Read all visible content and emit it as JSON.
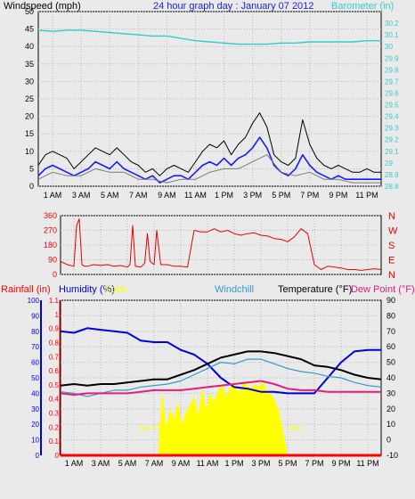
{
  "colors": {
    "background": "#eaeaea",
    "grid": "#b8b8b8",
    "wind_gust": "#000000",
    "wind_speed": "#1a1aff",
    "wind_avg": "#7a7a7a",
    "barometer": "#33cccc",
    "direction": "#e80000",
    "humidity": "#0000dd",
    "windchill": "#3399cc",
    "temperature": "#000000",
    "dew_point": "#e0207a",
    "solar": "#ffff00",
    "rainfall": "#ff0000",
    "day_band": "#ffff00"
  },
  "time_axis": {
    "ticks": [
      "1 AM",
      "3 AM",
      "5 AM",
      "7 AM",
      "9 AM",
      "11 AM",
      "1 PM",
      "3 PM",
      "5 PM",
      "7 PM",
      "9 PM",
      "11 PM"
    ],
    "hours": [
      1,
      3,
      5,
      7,
      9,
      11,
      13,
      15,
      17,
      19,
      21,
      23
    ]
  },
  "chart_data": [
    {
      "type": "line",
      "title": "24 hour graph day : January 07 2012",
      "ylabel_left": "Windspeed (mph)",
      "ylabel_right": "Barometer (in)",
      "ylim_left": [
        0,
        50
      ],
      "yticks_left": [
        "0",
        "5",
        "10",
        "15",
        "20",
        "25",
        "30",
        "35",
        "40",
        "45",
        "50"
      ],
      "ylim_right": [
        28.8,
        30.3
      ],
      "yticks_right": [
        "28.8",
        "28.9",
        "29",
        "29.1",
        "29.2",
        "29.3",
        "29.4",
        "29.5",
        "29.6",
        "29.7",
        "29.8",
        "29.9",
        "30",
        "30.1",
        "30.2"
      ],
      "xlim": [
        0,
        24
      ],
      "grid": true,
      "series": [
        {
          "key": "gust",
          "axis": "left",
          "x": [
            0,
            0.5,
            1,
            1.5,
            2,
            2.5,
            3,
            3.5,
            4,
            4.5,
            5,
            5.5,
            6,
            6.5,
            7,
            7.5,
            8,
            8.5,
            9,
            9.5,
            10,
            10.5,
            11,
            11.5,
            12,
            12.5,
            13,
            13.5,
            14,
            14.5,
            15,
            15.5,
            16,
            16.5,
            17,
            17.5,
            18,
            18.5,
            19,
            19.5,
            20,
            20.5,
            21,
            21.5,
            22,
            22.5,
            23,
            23.5,
            24
          ],
          "y": [
            6,
            9,
            10,
            9,
            8,
            5,
            7,
            9,
            11,
            10,
            9,
            11,
            9,
            7,
            6,
            4,
            5,
            3,
            5,
            6,
            5,
            4,
            7,
            10,
            12,
            11,
            13,
            9,
            12,
            14,
            18,
            21,
            17,
            9,
            7,
            6,
            8,
            19,
            12,
            8,
            6,
            5,
            6,
            5,
            4,
            4,
            5,
            4,
            4
          ]
        },
        {
          "key": "speed",
          "axis": "left",
          "x": [
            0,
            0.5,
            1,
            1.5,
            2,
            2.5,
            3,
            3.5,
            4,
            4.5,
            5,
            5.5,
            6,
            6.5,
            7,
            7.5,
            8,
            8.5,
            9,
            9.5,
            10,
            10.5,
            11,
            11.5,
            12,
            12.5,
            13,
            13.5,
            14,
            14.5,
            15,
            15.5,
            16,
            16.5,
            17,
            17.5,
            18,
            18.5,
            19,
            19.5,
            20,
            20.5,
            21,
            21.5,
            22,
            22.5,
            23,
            23.5,
            24
          ],
          "y": [
            3,
            5,
            6,
            5,
            4,
            3,
            4,
            5,
            7,
            6,
            5,
            7,
            5,
            4,
            3,
            2,
            3,
            1,
            2,
            3,
            3,
            2,
            4,
            6,
            7,
            6,
            8,
            6,
            8,
            9,
            11,
            14,
            11,
            6,
            4,
            3,
            5,
            9,
            6,
            4,
            3,
            2,
            3,
            2,
            2,
            2,
            2,
            2,
            2
          ]
        },
        {
          "key": "avg",
          "axis": "left",
          "x": [
            0,
            1,
            2,
            3,
            4,
            5,
            6,
            7,
            8,
            9,
            10,
            11,
            12,
            13,
            14,
            15,
            16,
            17,
            18,
            19,
            20,
            21,
            22,
            23,
            24
          ],
          "y": [
            2,
            4,
            3,
            3,
            5,
            4,
            4,
            2,
            2,
            1,
            2,
            2,
            4,
            5,
            5,
            7,
            9,
            4,
            3,
            4,
            2,
            2,
            1,
            1,
            1
          ]
        },
        {
          "key": "barometer",
          "axis": "right",
          "x": [
            0,
            1,
            2,
            3,
            4,
            5,
            6,
            7,
            8,
            9,
            10,
            11,
            12,
            13,
            14,
            15,
            16,
            17,
            18,
            19,
            20,
            21,
            22,
            23,
            24
          ],
          "y": [
            30.14,
            30.13,
            30.14,
            30.14,
            30.13,
            30.12,
            30.11,
            30.1,
            30.09,
            30.09,
            30.07,
            30.05,
            30.04,
            30.03,
            30.02,
            30.02,
            30.02,
            30.03,
            30.03,
            30.04,
            30.04,
            30.04,
            30.04,
            30.05,
            30.05
          ]
        }
      ]
    },
    {
      "type": "line",
      "ylabel_right_ticks": [
        "N",
        "W",
        "S",
        "E",
        "N"
      ],
      "ylim": [
        0,
        360
      ],
      "yticks": [
        "0",
        "90",
        "180",
        "270",
        "360"
      ],
      "xlim": [
        0,
        24
      ],
      "grid": true,
      "series": [
        {
          "key": "direction",
          "x": [
            0,
            0.5,
            1,
            1.2,
            1.4,
            1.6,
            1.8,
            2,
            2.5,
            3,
            3.5,
            4,
            4.5,
            5,
            5.2,
            5.4,
            5.6,
            6,
            6.3,
            6.5,
            6.7,
            7,
            7.2,
            7.5,
            8,
            8.5,
            9,
            9.5,
            10,
            10.5,
            11,
            11.5,
            12,
            12.5,
            13,
            13.5,
            14,
            14.5,
            15,
            15.5,
            16,
            16.5,
            17,
            17.5,
            18,
            18.5,
            19,
            19.5,
            20,
            20.5,
            21,
            21.5,
            22,
            22.5,
            23,
            23.5,
            24
          ],
          "y": [
            80,
            60,
            50,
            300,
            340,
            60,
            50,
            50,
            60,
            55,
            60,
            50,
            55,
            45,
            60,
            300,
            50,
            45,
            70,
            250,
            80,
            60,
            270,
            60,
            60,
            50,
            50,
            45,
            270,
            260,
            260,
            280,
            260,
            270,
            250,
            240,
            250,
            255,
            240,
            235,
            220,
            215,
            200,
            230,
            280,
            250,
            60,
            30,
            50,
            45,
            40,
            30,
            30,
            25,
            30,
            35,
            30
          ]
        }
      ]
    },
    {
      "type": "line",
      "labels": {
        "rainfall": "Rainfall (in)",
        "humidity": "Humidity (%)",
        "solar": "Solar",
        "windchill": "Windchill",
        "temperature": "Temperature (°F)",
        "dew_point": "Dew Point (°F)"
      },
      "annotations": {
        "sunrise": "Sun Rise",
        "sunset": "Set"
      },
      "ylim_rain": [
        0,
        1.1
      ],
      "yticks_rain": [
        "0",
        "0.1",
        "0.2",
        "0.3",
        "0.4",
        "0.5",
        "0.6",
        "0.7",
        "0.8",
        "0.9",
        "1",
        "1.1"
      ],
      "ylim_humidity": [
        0,
        100
      ],
      "yticks_humidity": [
        "0",
        "10",
        "20",
        "30",
        "40",
        "50",
        "60",
        "70",
        "80",
        "90",
        "100"
      ],
      "ylim_temp": [
        -10,
        90
      ],
      "yticks_temp": [
        "-10",
        "0",
        "10",
        "20",
        "30",
        "40",
        "50",
        "60",
        "70",
        "80",
        "90"
      ],
      "xlim": [
        0,
        24
      ],
      "grid": true,
      "sun": {
        "rise_hour": 7.3,
        "set_hour": 17.0
      },
      "series": [
        {
          "key": "humidity",
          "axis": "humidity",
          "x": [
            0,
            1,
            2,
            3,
            4,
            5,
            6,
            7,
            8,
            9,
            10,
            11,
            12,
            13,
            14,
            15,
            16,
            17,
            18,
            19,
            20,
            21,
            22,
            23,
            24
          ],
          "y": [
            80,
            79,
            82,
            81,
            80,
            79,
            74,
            73,
            73,
            68,
            65,
            59,
            50,
            44,
            43,
            41,
            41,
            40,
            40,
            40,
            50,
            60,
            67,
            68,
            68
          ]
        },
        {
          "key": "temperature",
          "axis": "temp",
          "x": [
            0,
            1,
            2,
            3,
            4,
            5,
            6,
            7,
            8,
            9,
            10,
            11,
            12,
            13,
            14,
            15,
            16,
            17,
            18,
            19,
            20,
            21,
            22,
            23,
            24
          ],
          "y": [
            35,
            36,
            35,
            36,
            36,
            37,
            38,
            39,
            39,
            42,
            45,
            49,
            53,
            55,
            57,
            57,
            56,
            54,
            52,
            48,
            47,
            45,
            42,
            40,
            39
          ]
        },
        {
          "key": "windchill",
          "axis": "temp",
          "x": [
            0,
            1,
            2,
            3,
            4,
            5,
            6,
            7,
            8,
            9,
            10,
            11,
            12,
            13,
            14,
            15,
            16,
            17,
            18,
            19,
            20,
            21,
            22,
            23,
            24
          ],
          "y": [
            31,
            30,
            28,
            30,
            32,
            32,
            34,
            35,
            36,
            38,
            42,
            46,
            50,
            49,
            52,
            52,
            49,
            46,
            44,
            43,
            41,
            40,
            37,
            35,
            34
          ]
        },
        {
          "key": "dew_point",
          "axis": "temp",
          "x": [
            0,
            1,
            2,
            3,
            4,
            5,
            6,
            7,
            8,
            9,
            10,
            11,
            12,
            13,
            14,
            15,
            16,
            17,
            18,
            19,
            20,
            21,
            22,
            23,
            24
          ],
          "y": [
            30,
            29,
            30,
            30,
            30,
            30,
            31,
            32,
            32,
            32,
            33,
            34,
            35,
            36,
            37,
            38,
            36,
            33,
            32,
            32,
            31,
            31,
            31,
            31,
            31
          ]
        },
        {
          "key": "solar",
          "axis": "humidity",
          "x": [
            7.3,
            7.6,
            7.9,
            8.2,
            8.5,
            8.8,
            9.1,
            9.4,
            9.7,
            10,
            10.3,
            10.6,
            10.9,
            11.2,
            11.5,
            11.8,
            12.1,
            12.4,
            12.7,
            13,
            13.3,
            13.6,
            13.9,
            14.2,
            14.5,
            14.8,
            15.1,
            15.4,
            15.7,
            16,
            16.3,
            16.6,
            17
          ],
          "y": [
            0,
            42,
            18,
            30,
            24,
            35,
            20,
            28,
            33,
            38,
            26,
            44,
            30,
            40,
            35,
            42,
            46,
            38,
            44,
            48,
            40,
            45,
            47,
            43,
            46,
            44,
            48,
            42,
            40,
            36,
            30,
            18,
            0
          ]
        },
        {
          "key": "rainfall",
          "axis": "rain",
          "x": [
            0,
            24
          ],
          "y": [
            0,
            0
          ]
        }
      ]
    }
  ]
}
